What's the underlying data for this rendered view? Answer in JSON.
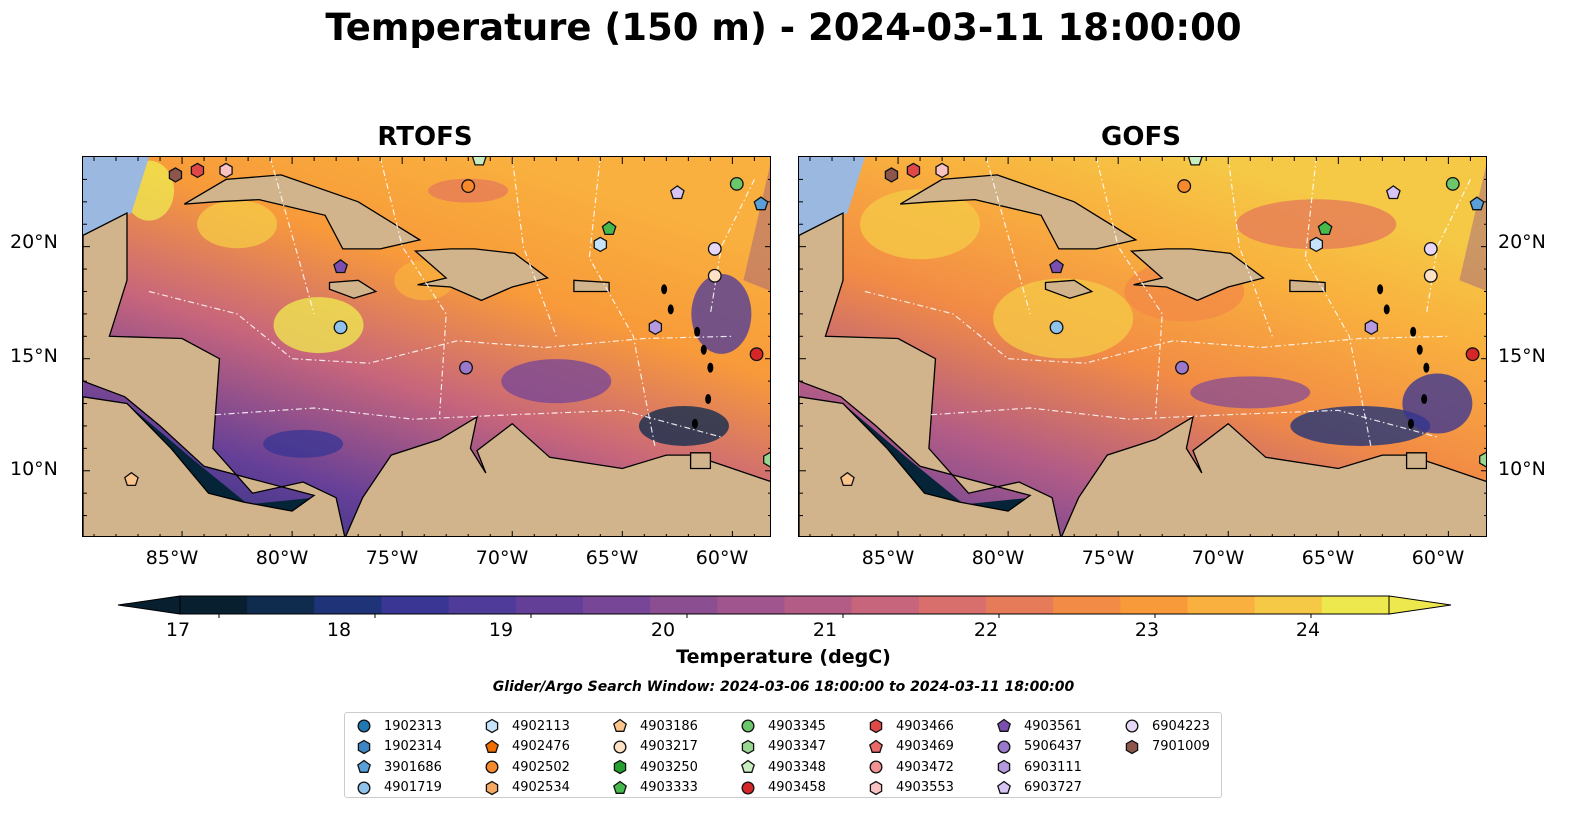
{
  "figure": {
    "title": "Temperature (150 m) - 2024-03-11 18:00:00",
    "search_window": "Glider/Argo Search Window: 2024-03-06 18:00:00 to 2024-03-11 18:00:00"
  },
  "panels": [
    {
      "title": "RTOFS",
      "variant": "rtofs"
    },
    {
      "title": "GOFS",
      "variant": "gofs"
    }
  ],
  "axes": {
    "lat_ticks": [
      "20°N",
      "15°N",
      "10°N"
    ],
    "lon_ticks": [
      "85°W",
      "80°W",
      "75°W",
      "70°W",
      "65°W",
      "60°W"
    ],
    "lat_range": [
      7,
      24
    ],
    "lon_range": [
      -89.5,
      -58.2
    ]
  },
  "colorbar": {
    "label": "Temperature (degC)",
    "ticks": [
      "17",
      "18",
      "19",
      "20",
      "21",
      "22",
      "23",
      "24"
    ],
    "tick_values": [
      17,
      18,
      19,
      20,
      21,
      22,
      23,
      24
    ],
    "range": [
      16.75,
      24.5
    ],
    "extend": "both",
    "colors": [
      "#081f30",
      "#0f2c4f",
      "#1e3378",
      "#3a3694",
      "#4f3c9a",
      "#643f98",
      "#784696",
      "#8b4e91",
      "#a0558e",
      "#b35c86",
      "#c7657c",
      "#d96f6c",
      "#e67b59",
      "#f28b45",
      "#f89a3a",
      "#f9b03e",
      "#f5c946",
      "#eee84f"
    ]
  },
  "colors": {
    "land": "#d2b48c",
    "shelf": "#9ab8e0",
    "deep_ocean_outside": "#062438",
    "boundary": "#ffffff"
  },
  "floats": [
    {
      "id": "1902313",
      "marker": "circle",
      "color": "#1f77b4",
      "lon": null,
      "lat": null
    },
    {
      "id": "1902314",
      "marker": "hexagon",
      "color": "#3f85c4",
      "lon": null,
      "lat": null
    },
    {
      "id": "3901686",
      "marker": "pentagon",
      "color": "#5aa0d8",
      "lon": -58.7,
      "lat": 21.9
    },
    {
      "id": "4901719",
      "marker": "circle",
      "color": "#8fc3ec",
      "lon": -77.8,
      "lat": 16.4
    },
    {
      "id": "4902113",
      "marker": "hexagon",
      "color": "#c5e3fa",
      "lon": -66.0,
      "lat": 20.1
    },
    {
      "id": "4902476",
      "marker": "pentagon",
      "color": "#ef6c00",
      "lon": null,
      "lat": null
    },
    {
      "id": "4902502",
      "marker": "circle",
      "color": "#f5892c",
      "lon": -72.0,
      "lat": 22.7
    },
    {
      "id": "4902534",
      "marker": "hexagon",
      "color": "#f7a860",
      "lon": null,
      "lat": null
    },
    {
      "id": "4903186",
      "marker": "pentagon",
      "color": "#fbc48d",
      "lon": -87.3,
      "lat": 9.6
    },
    {
      "id": "4903217",
      "marker": "circle",
      "color": "#fde1c5",
      "lon": -60.8,
      "lat": 18.7
    },
    {
      "id": "4903250",
      "marker": "hexagon",
      "color": "#23a02d",
      "lon": null,
      "lat": null
    },
    {
      "id": "4903333",
      "marker": "pentagon",
      "color": "#47b94a",
      "lon": -65.6,
      "lat": 20.8
    },
    {
      "id": "4903345",
      "marker": "circle",
      "color": "#6cc66a",
      "lon": -59.8,
      "lat": 22.8
    },
    {
      "id": "4903347",
      "marker": "hexagon",
      "color": "#98d78f",
      "lon": -58.3,
      "lat": 10.5
    },
    {
      "id": "4903348",
      "marker": "pentagon",
      "color": "#c7edc0",
      "lon": -71.5,
      "lat": 23.9
    },
    {
      "id": "4903458",
      "marker": "circle",
      "color": "#d62728",
      "lon": -58.9,
      "lat": 15.2
    },
    {
      "id": "4903466",
      "marker": "hexagon",
      "color": "#e04848",
      "lon": -84.3,
      "lat": 23.4
    },
    {
      "id": "4903469",
      "marker": "pentagon",
      "color": "#ea6a6a",
      "lon": null,
      "lat": null
    },
    {
      "id": "4903472",
      "marker": "circle",
      "color": "#f39292",
      "lon": null,
      "lat": null
    },
    {
      "id": "4903553",
      "marker": "hexagon",
      "color": "#fbc2c2",
      "lon": -83.0,
      "lat": 23.4
    },
    {
      "id": "4903561",
      "marker": "pentagon",
      "color": "#7a4fb0",
      "lon": -77.8,
      "lat": 19.1
    },
    {
      "id": "5906437",
      "marker": "circle",
      "color": "#9a78cc",
      "lon": -72.1,
      "lat": 14.6
    },
    {
      "id": "6903111",
      "marker": "hexagon",
      "color": "#b59ae0",
      "lon": -63.5,
      "lat": 16.4
    },
    {
      "id": "6903727",
      "marker": "pentagon",
      "color": "#d6c4f2",
      "lon": -62.5,
      "lat": 22.4
    },
    {
      "id": "6904223",
      "marker": "circle",
      "color": "#e6d7f7",
      "lon": -60.8,
      "lat": 19.9
    },
    {
      "id": "7901009",
      "marker": "hexagon",
      "color": "#8c564b",
      "lon": -85.3,
      "lat": 23.2
    }
  ]
}
